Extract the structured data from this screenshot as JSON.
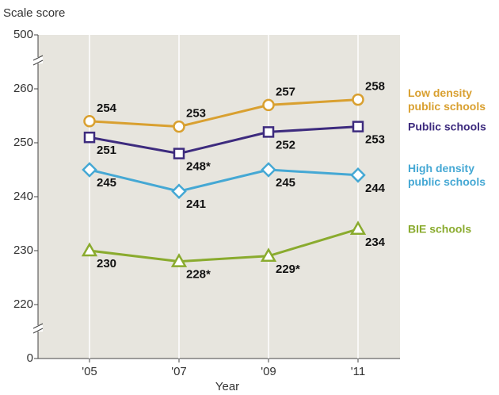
{
  "chart_data": {
    "type": "line",
    "y_label": "Scale score",
    "x_label": "Year",
    "categories": [
      "'05",
      "'07",
      "'09",
      "'11"
    ],
    "ylim": [
      0,
      500
    ],
    "yticks": [
      0,
      220,
      230,
      240,
      250,
      260,
      500
    ],
    "series": [
      {
        "name": "Low density public schools",
        "color": "#d9a030",
        "marker": "circle",
        "values": [
          254,
          253,
          257,
          258
        ]
      },
      {
        "name": "Public schools",
        "color": "#3d2b7e",
        "marker": "square",
        "values": [
          251,
          248,
          252,
          253
        ],
        "value_labels": [
          "251",
          "248*",
          "252",
          "253"
        ]
      },
      {
        "name": "High density public schools",
        "color": "#45a8d4",
        "marker": "diamond",
        "values": [
          245,
          241,
          245,
          244
        ]
      },
      {
        "name": "BIE schools",
        "color": "#8aab2e",
        "marker": "triangle",
        "values": [
          230,
          228,
          229,
          234
        ],
        "value_labels": [
          "230",
          "228*",
          "229*",
          "234"
        ]
      }
    ]
  }
}
